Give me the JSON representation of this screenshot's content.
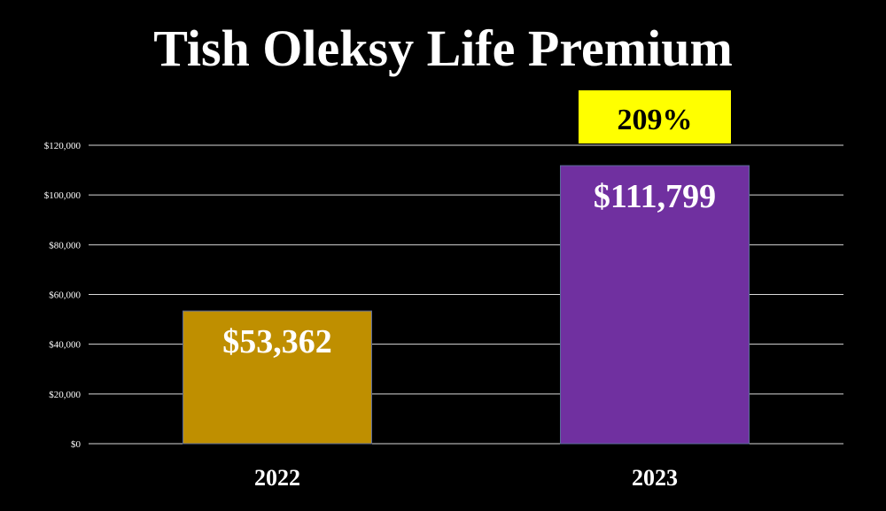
{
  "chart_data": {
    "type": "bar",
    "title": "Tish Oleksy Life Premium",
    "categories": [
      "2022",
      "2023"
    ],
    "values": [
      53362,
      111799
    ],
    "data_labels": [
      "$53,362",
      "$111,799"
    ],
    "bar_colors": [
      "#bf8f00",
      "#7030a0"
    ],
    "ylim": [
      0,
      120000
    ],
    "yticks": [
      0,
      20000,
      40000,
      60000,
      80000,
      100000,
      120000
    ],
    "ytick_labels": [
      "$0",
      "$20,000",
      "$40,000",
      "$60,000",
      "$80,000",
      "$100,000",
      "$120,000"
    ],
    "grid": true,
    "legend": "none",
    "annotation": {
      "text": "209%",
      "category": "2023",
      "background": "#ffff00"
    }
  }
}
